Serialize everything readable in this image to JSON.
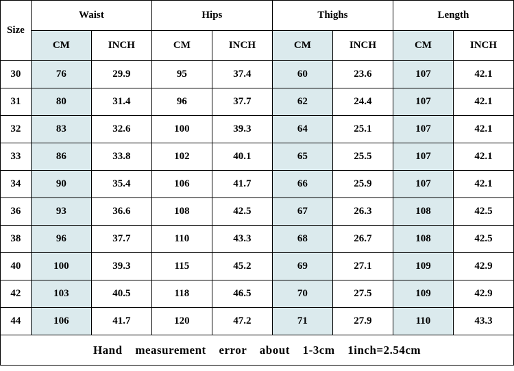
{
  "table": {
    "type": "table",
    "background_color": "#ffffff",
    "shaded_color": "#dbeaed",
    "border_color": "#000000",
    "text_color": "#000000",
    "header_fontsize": 15,
    "cell_fontsize": 15,
    "footer_fontsize": 17,
    "font_weight": "bold",
    "headers": {
      "size": "Size",
      "waist": "Waist",
      "hips": "Hips",
      "thighs": "Thighs",
      "length": "Length"
    },
    "sub_headers": {
      "cm": "CM",
      "inch": "INCH"
    },
    "columns": [
      "Size",
      "Waist CM",
      "Waist INCH",
      "Hips CM",
      "Hips INCH",
      "Thighs CM",
      "Thighs INCH",
      "Length CM",
      "Length INCH"
    ],
    "shaded_columns": [
      1,
      5,
      7
    ],
    "rows": [
      [
        "30",
        "76",
        "29.9",
        "95",
        "37.4",
        "60",
        "23.6",
        "107",
        "42.1"
      ],
      [
        "31",
        "80",
        "31.4",
        "96",
        "37.7",
        "62",
        "24.4",
        "107",
        "42.1"
      ],
      [
        "32",
        "83",
        "32.6",
        "100",
        "39.3",
        "64",
        "25.1",
        "107",
        "42.1"
      ],
      [
        "33",
        "86",
        "33.8",
        "102",
        "40.1",
        "65",
        "25.5",
        "107",
        "42.1"
      ],
      [
        "34",
        "90",
        "35.4",
        "106",
        "41.7",
        "66",
        "25.9",
        "107",
        "42.1"
      ],
      [
        "36",
        "93",
        "36.6",
        "108",
        "42.5",
        "67",
        "26.3",
        "108",
        "42.5"
      ],
      [
        "38",
        "96",
        "37.7",
        "110",
        "43.3",
        "68",
        "26.7",
        "108",
        "42.5"
      ],
      [
        "40",
        "100",
        "39.3",
        "115",
        "45.2",
        "69",
        "27.1",
        "109",
        "42.9"
      ],
      [
        "42",
        "103",
        "40.5",
        "118",
        "46.5",
        "70",
        "27.5",
        "109",
        "42.9"
      ],
      [
        "44",
        "106",
        "41.7",
        "120",
        "47.2",
        "71",
        "27.9",
        "110",
        "43.3"
      ]
    ],
    "footer": "Hand measurement error about 1-3cm 1inch=2.54cm"
  }
}
